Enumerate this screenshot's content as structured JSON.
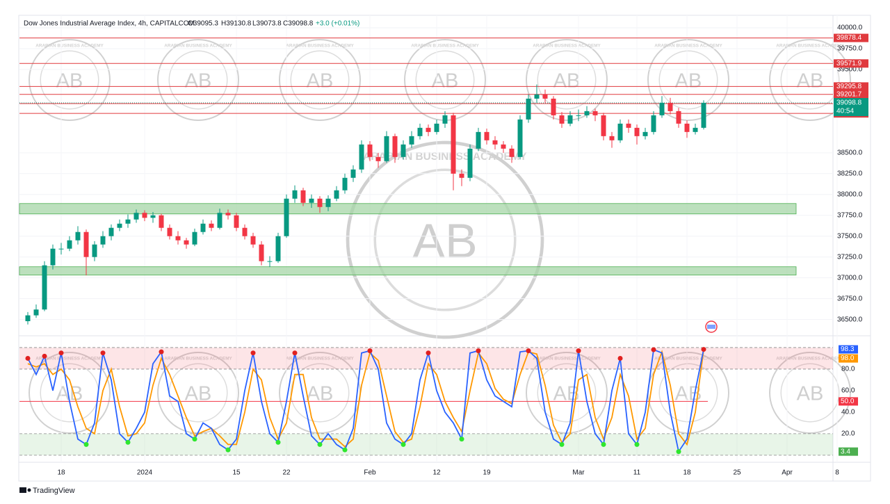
{
  "chart_data": [
    {
      "type": "candlestick",
      "title": "Dow Jones Industrial Average Index, 4h, CAPITALCOM",
      "ohlc_labels": [
        "O39095.3",
        "H39130.8",
        "L39073.8",
        "C39098.8"
      ],
      "change": "+3.0 (+0.01%)",
      "up_color": "#089981",
      "down_color": "#f23645",
      "categories": [
        null,
        null,
        null,
        null,
        "18",
        null,
        null,
        null,
        null,
        null,
        null,
        null,
        null,
        null,
        "2024",
        null,
        null,
        null,
        null,
        null,
        null,
        null,
        null,
        null,
        null,
        "15",
        null,
        null,
        null,
        null,
        null,
        "22",
        null,
        null,
        null,
        null,
        null,
        null,
        null,
        null,
        null,
        "Feb",
        null,
        null,
        null,
        null,
        null,
        null,
        null,
        "12",
        null,
        null,
        null,
        null,
        null,
        "19",
        null,
        null,
        null,
        null,
        null,
        null,
        null,
        null,
        null,
        null,
        "Mar",
        null,
        null,
        null,
        null,
        null,
        null,
        "11",
        null,
        null,
        null,
        null,
        null,
        "18",
        null,
        null,
        null,
        null,
        null,
        "25",
        null,
        null,
        null,
        null,
        null,
        "Apr",
        null,
        null,
        null,
        null,
        null,
        "8"
      ],
      "ohlc": [
        [
          36480,
          36590,
          36440,
          36550
        ],
        [
          36550,
          36680,
          36520,
          36620
        ],
        [
          36620,
          37200,
          36600,
          37150
        ],
        [
          37150,
          37400,
          37100,
          37350
        ],
        [
          37350,
          37420,
          37280,
          37350
        ],
        [
          37350,
          37500,
          37320,
          37450
        ],
        [
          37450,
          37620,
          37400,
          37550
        ],
        [
          37550,
          37580,
          37030,
          37250
        ],
        [
          37250,
          37440,
          37200,
          37400
        ],
        [
          37400,
          37560,
          37360,
          37500
        ],
        [
          37500,
          37640,
          37450,
          37600
        ],
        [
          37600,
          37700,
          37560,
          37650
        ],
        [
          37650,
          37760,
          37600,
          37700
        ],
        [
          37700,
          37820,
          37660,
          37780
        ],
        [
          37780,
          37810,
          37680,
          37720
        ],
        [
          37720,
          37790,
          37660,
          37750
        ],
        [
          37750,
          37770,
          37560,
          37600
        ],
        [
          37600,
          37640,
          37460,
          37500
        ],
        [
          37500,
          37560,
          37400,
          37450
        ],
        [
          37450,
          37480,
          37350,
          37400
        ],
        [
          37400,
          37590,
          37380,
          37550
        ],
        [
          37550,
          37700,
          37520,
          37650
        ],
        [
          37650,
          37690,
          37560,
          37600
        ],
        [
          37600,
          37830,
          37580,
          37780
        ],
        [
          37780,
          37820,
          37700,
          37750
        ],
        [
          37750,
          37780,
          37560,
          37600
        ],
        [
          37600,
          37640,
          37460,
          37500
        ],
        [
          37500,
          37540,
          37360,
          37400
        ],
        [
          37400,
          37440,
          37150,
          37200
        ],
        [
          37200,
          37260,
          37130,
          37200
        ],
        [
          37200,
          37540,
          37180,
          37500
        ],
        [
          37500,
          38000,
          37480,
          37950
        ],
        [
          37950,
          38110,
          37900,
          38050
        ],
        [
          38050,
          38080,
          37860,
          37900
        ],
        [
          37900,
          38000,
          37840,
          37950
        ],
        [
          37950,
          37980,
          37780,
          37850
        ],
        [
          37850,
          37990,
          37800,
          37950
        ],
        [
          37950,
          38100,
          37920,
          38050
        ],
        [
          38050,
          38250,
          38010,
          38200
        ],
        [
          38200,
          38350,
          38150,
          38300
        ],
        [
          38300,
          38650,
          38260,
          38600
        ],
        [
          38600,
          38640,
          38400,
          38450
        ],
        [
          38450,
          38500,
          38320,
          38400
        ],
        [
          38400,
          38760,
          38380,
          38700
        ],
        [
          38700,
          38730,
          38380,
          38450
        ],
        [
          38450,
          38650,
          38420,
          38600
        ],
        [
          38600,
          38760,
          38560,
          38700
        ],
        [
          38700,
          38850,
          38660,
          38800
        ],
        [
          38800,
          38840,
          38700,
          38750
        ],
        [
          38750,
          38900,
          38720,
          38850
        ],
        [
          38850,
          39000,
          38800,
          38950
        ],
        [
          38950,
          38980,
          38050,
          38250
        ],
        [
          38250,
          38300,
          38100,
          38200
        ],
        [
          38200,
          38600,
          38160,
          38550
        ],
        [
          38550,
          38800,
          38520,
          38750
        ],
        [
          38750,
          38790,
          38600,
          38650
        ],
        [
          38650,
          38700,
          38540,
          38600
        ],
        [
          38600,
          38640,
          38500,
          38550
        ],
        [
          38550,
          38590,
          38380,
          38450
        ],
        [
          38450,
          38950,
          38420,
          38900
        ],
        [
          38900,
          39200,
          38860,
          39150
        ],
        [
          39150,
          39320,
          39100,
          39200
        ],
        [
          39200,
          39260,
          39100,
          39150
        ],
        [
          39150,
          39180,
          38900,
          38950
        ],
        [
          38950,
          38990,
          38800,
          38850
        ],
        [
          38850,
          39000,
          38820,
          38950
        ],
        [
          38950,
          39020,
          38880,
          38950
        ],
        [
          38950,
          39060,
          38920,
          39000
        ],
        [
          39000,
          39030,
          38880,
          38950
        ],
        [
          38950,
          38980,
          38650,
          38700
        ],
        [
          38700,
          38750,
          38560,
          38650
        ],
        [
          38650,
          38900,
          38620,
          38850
        ],
        [
          38850,
          38900,
          38740,
          38800
        ],
        [
          38800,
          38840,
          38600,
          38700
        ],
        [
          38700,
          38800,
          38660,
          38750
        ],
        [
          38750,
          39000,
          38720,
          38950
        ],
        [
          38950,
          39180,
          38920,
          39100
        ],
        [
          39100,
          39160,
          38960,
          39000
        ],
        [
          39000,
          39040,
          38800,
          38850
        ],
        [
          38850,
          38890,
          38680,
          38750
        ],
        [
          38750,
          38850,
          38720,
          38800
        ],
        [
          38800,
          39130.8,
          38780,
          39098.8
        ],
        null,
        null,
        null,
        null,
        null,
        null,
        null,
        null,
        null,
        null,
        null,
        null,
        null,
        null,
        null,
        null
      ],
      "ylim": [
        36330,
        40150
      ],
      "yticks": [
        {
          "value": 40000,
          "label": "40000.0"
        },
        {
          "value": 39750,
          "label": "39750.0"
        },
        {
          "value": 39500,
          "label": "39500.0"
        },
        {
          "value": 38500,
          "label": "38500.0"
        },
        {
          "value": 38250,
          "label": "38250.0"
        },
        {
          "value": 38000,
          "label": "38000.0"
        },
        {
          "value": 37750,
          "label": "37750.0"
        },
        {
          "value": 37500,
          "label": "37500.0"
        },
        {
          "value": 37250,
          "label": "37250.0"
        },
        {
          "value": 37000,
          "label": "37000.0"
        },
        {
          "value": 36750,
          "label": "36750.0"
        },
        {
          "value": 36500,
          "label": "36500.0"
        }
      ],
      "levels": [
        39878.4,
        39571.9,
        39295.8,
        39201.7,
        39090.4,
        38972.9
      ],
      "level_color": "#e03a3e",
      "last_price": 39098.8,
      "countdown": "40:54",
      "zones": [
        [
          37766.7,
          37891.7
        ],
        [
          37033,
          37133
        ]
      ],
      "zone_color": "#a5d6a7",
      "watermark": "ARABIAN BUSINESS ACADEMY",
      "watermark_logo": "AB"
    },
    {
      "type": "line",
      "series": [
        {
          "color": "#2962ff",
          "values": [
            90,
            75,
            92,
            60,
            95,
            50,
            15,
            10,
            30,
            95,
            70,
            20,
            12,
            25,
            40,
            85,
            96,
            55,
            50,
            20,
            15,
            30,
            25,
            10,
            5,
            15,
            60,
            95,
            50,
            20,
            12,
            50,
            95,
            55,
            18,
            10,
            20,
            10,
            5,
            25,
            95,
            97,
            80,
            30,
            15,
            10,
            20,
            70,
            95,
            60,
            40,
            30,
            15,
            95,
            97,
            70,
            55,
            50,
            45,
            96,
            97,
            90,
            40,
            15,
            10,
            30,
            97,
            50,
            20,
            10,
            60,
            90,
            20,
            10,
            40,
            98,
            95,
            40,
            3.4,
            15,
            60,
            98.3,
            null,
            null,
            null,
            null,
            null,
            null,
            null,
            null,
            null,
            null,
            null,
            null,
            null,
            null,
            null,
            null
          ]
        },
        {
          "color": "#ff9800",
          "values": [
            85,
            82,
            85,
            75,
            80,
            70,
            45,
            25,
            20,
            60,
            80,
            45,
            18,
            20,
            30,
            65,
            90,
            75,
            55,
            35,
            18,
            22,
            25,
            18,
            10,
            10,
            40,
            80,
            70,
            35,
            15,
            30,
            75,
            75,
            35,
            15,
            15,
            15,
            8,
            15,
            65,
            95,
            88,
            55,
            22,
            12,
            15,
            45,
            85,
            75,
            50,
            35,
            22,
            60,
            95,
            85,
            62,
            52,
            48,
            75,
            96,
            94,
            65,
            28,
            12,
            20,
            70,
            75,
            35,
            15,
            35,
            75,
            55,
            15,
            25,
            75,
            96,
            65,
            20,
            10,
            40,
            98,
            null,
            null,
            null,
            null,
            null,
            null,
            null,
            null,
            null,
            null,
            null,
            null,
            null,
            null,
            null,
            null
          ]
        }
      ],
      "ylim": [
        -2,
        109
      ],
      "yticks": [
        {
          "value": 80,
          "label": "80.0"
        },
        {
          "value": 60,
          "label": "60.0"
        },
        {
          "value": 40,
          "label": "40.0"
        },
        {
          "value": 20,
          "label": "20.0"
        }
      ],
      "upper_band": [
        80,
        100
      ],
      "lower_band": [
        0,
        20
      ],
      "mid_level": 50,
      "badges": [
        98.3,
        {
          "value": 98,
          "label": "98.0"
        },
        {
          "value": 50,
          "label": "50.0"
        },
        3.4
      ],
      "badge_colors": [
        "#2962ff",
        "#ff9800",
        "#f23645",
        "#4caf50"
      ]
    }
  ],
  "footer": "TradingView"
}
